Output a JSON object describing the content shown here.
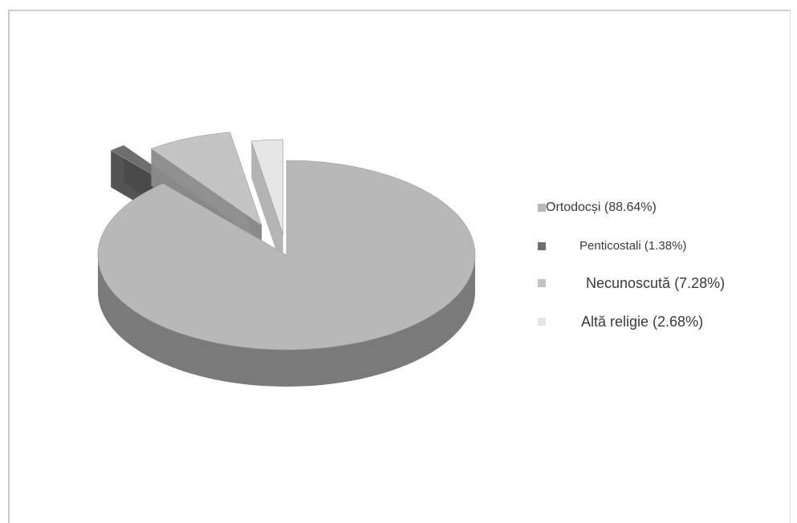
{
  "chart_data": {
    "type": "pie",
    "style": "3d-exploded",
    "slices": [
      {
        "name": "Ortodocși",
        "value": 88.64,
        "label": "Ortodocși (88.64%)",
        "color": "#b8b8b8",
        "side_color": "#7a7a7a"
      },
      {
        "name": "Penticostali",
        "value": 1.38,
        "label": "Penticostali (1.38%)",
        "color": "#6e6e6e",
        "side_color": "#4a4a4a"
      },
      {
        "name": "Necunoscută",
        "value": 7.28,
        "label": "Necunoscută (7.28%)",
        "color": "#c4c4c4",
        "side_color": "#8a8a8a"
      },
      {
        "name": "Altă religie",
        "value": 2.68,
        "label": "Altă religie (2.68%)",
        "color": "#e6e6e6",
        "side_color": "#b0b0b0"
      }
    ],
    "legend_position": "right",
    "title": ""
  }
}
